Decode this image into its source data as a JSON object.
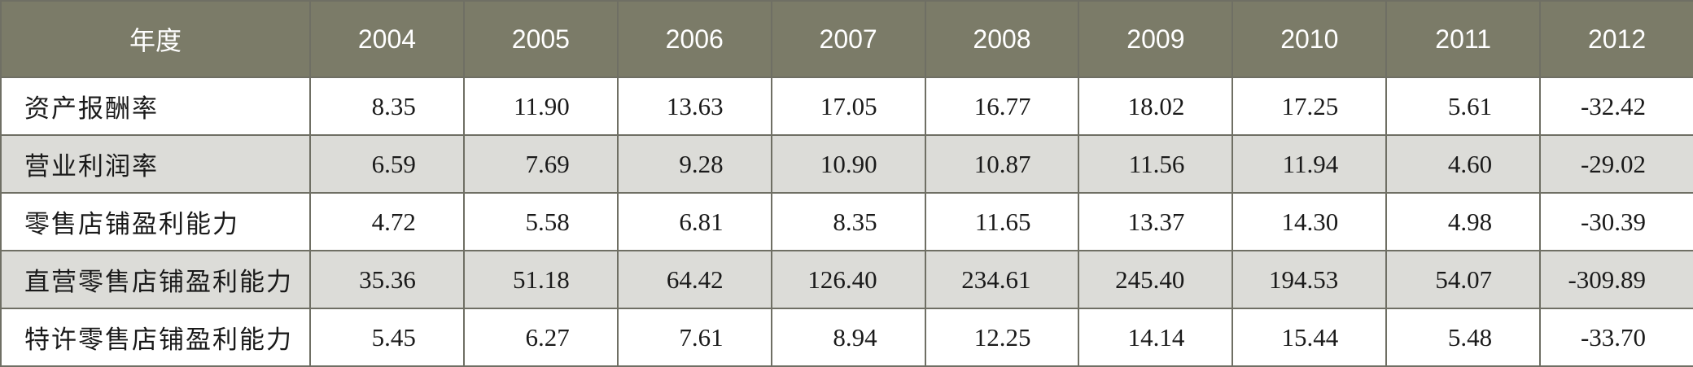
{
  "table": {
    "header": {
      "label": "年度",
      "years": [
        "2004",
        "2005",
        "2006",
        "2007",
        "2008",
        "2009",
        "2010",
        "2011",
        "2012"
      ]
    },
    "rows": [
      {
        "label": "资产报酬率",
        "values": [
          "8.35",
          "11.90",
          "13.63",
          "17.05",
          "16.77",
          "18.02",
          "17.25",
          "5.61",
          "-32.42"
        ]
      },
      {
        "label": "营业利润率",
        "values": [
          "6.59",
          "7.69",
          "9.28",
          "10.90",
          "10.87",
          "11.56",
          "11.94",
          "4.60",
          "-29.02"
        ]
      },
      {
        "label": "零售店铺盈利能力",
        "values": [
          "4.72",
          "5.58",
          "6.81",
          "8.35",
          "11.65",
          "13.37",
          "14.30",
          "4.98",
          "-30.39"
        ]
      },
      {
        "label": "直营零售店铺盈利能力",
        "values": [
          "35.36",
          "51.18",
          "64.42",
          "126.40",
          "234.61",
          "245.40",
          "194.53",
          "54.07",
          "-309.89"
        ]
      },
      {
        "label": "特许零售店铺盈利能力",
        "values": [
          "5.45",
          "6.27",
          "7.61",
          "8.94",
          "12.25",
          "14.14",
          "15.44",
          "5.48",
          "-33.70"
        ]
      }
    ]
  },
  "colors": {
    "header_bg": "#7b7b68",
    "header_text": "#ffffff",
    "row_alt_bg": "#dcdcd8",
    "border": "#6f6f64"
  }
}
